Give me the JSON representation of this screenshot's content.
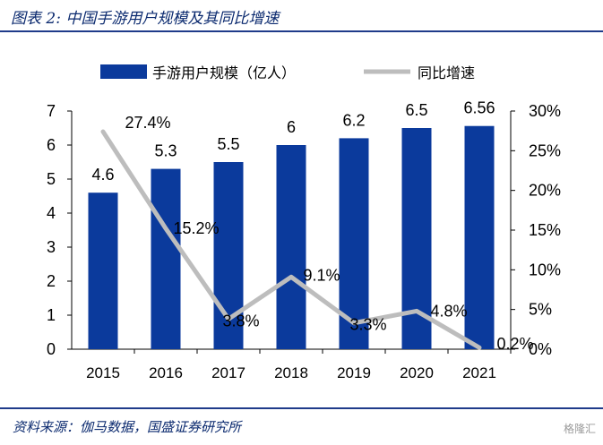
{
  "figure": {
    "title": "图表 2:  中国手游用户规模及其同比增速",
    "source": "资料来源：伽马数据，国盛证券研究所",
    "watermark": "格隆汇"
  },
  "colors": {
    "bar": "#0b3a9c",
    "line": "#bdbdbd",
    "rule": "#1f3b8a"
  },
  "chart_data": {
    "type": "bar+line",
    "categories": [
      "2015",
      "2016",
      "2017",
      "2018",
      "2019",
      "2020",
      "2021"
    ],
    "series": [
      {
        "name": "手游用户规模（亿人）",
        "type": "bar",
        "axis": "left",
        "values": [
          4.6,
          5.3,
          5.5,
          6,
          6.2,
          6.5,
          6.56
        ],
        "labels": [
          "4.6",
          "5.3",
          "5.5",
          "6",
          "6.2",
          "6.5",
          "6.56"
        ]
      },
      {
        "name": "同比增速",
        "type": "line",
        "axis": "right",
        "values": [
          27.4,
          15.2,
          3.8,
          9.1,
          3.3,
          4.8,
          0.2
        ],
        "labels": [
          "27.4%",
          "15.2%",
          "3.8%",
          "9.1%",
          "3.3%",
          "4.8%",
          "0.2%"
        ]
      }
    ],
    "y_left": {
      "min": 0,
      "max": 7,
      "ticks": [
        "0",
        "1",
        "2",
        "3",
        "4",
        "5",
        "6",
        "7"
      ]
    },
    "y_right": {
      "min": 0,
      "max": 30,
      "ticks": [
        "0%",
        "5%",
        "10%",
        "15%",
        "20%",
        "25%",
        "30%"
      ]
    },
    "legend": "top"
  }
}
